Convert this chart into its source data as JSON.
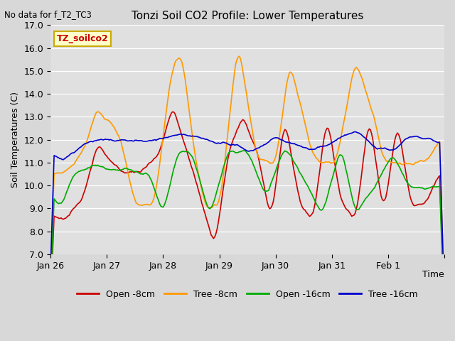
{
  "title": "Tonzi Soil CO2 Profile: Lower Temperatures",
  "subtitle": "No data for f_T2_TC3",
  "ylabel": "Soil Temperatures (C)",
  "xlabel": "Time",
  "annotation": "TZ_soilco2",
  "ylim": [
    7.0,
    17.0
  ],
  "yticks": [
    7.0,
    8.0,
    9.0,
    10.0,
    11.0,
    12.0,
    13.0,
    14.0,
    15.0,
    16.0,
    17.0
  ],
  "xtick_positions": [
    0,
    24,
    48,
    72,
    96,
    120,
    144,
    168
  ],
  "xtick_labels": [
    "Jan 26",
    "Jan 27",
    "Jan 28",
    "Jan 29",
    "Jan 30",
    "Jan 31",
    "Feb 1",
    ""
  ],
  "colors": {
    "open_8cm": "#cc0000",
    "tree_8cm": "#ff9900",
    "open_16cm": "#00aa00",
    "tree_16cm": "#0000cc"
  },
  "legend_labels": [
    "Open -8cm",
    "Tree -8cm",
    "Open -16cm",
    "Tree -16cm"
  ],
  "fig_bg_color": "#d8d8d8",
  "plot_bg_color": "#e0e0e0"
}
